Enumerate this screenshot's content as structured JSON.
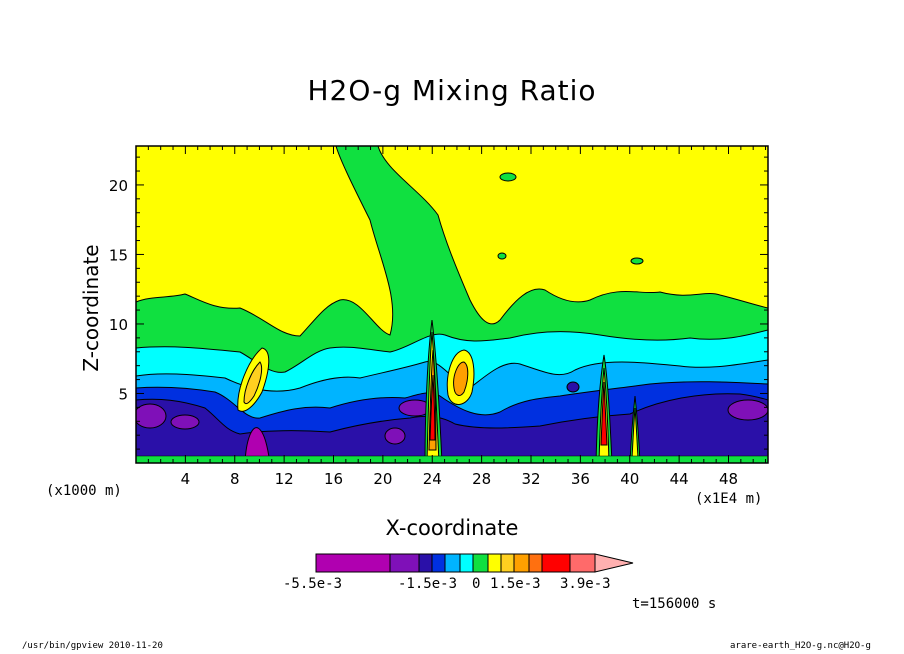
{
  "chart_data": {
    "type": "heatmap",
    "title": "H2O-g Mixing Ratio",
    "xlabel": "X-coordinate",
    "ylabel": "Z-coordinate",
    "x_unit_left": "(x1000 m)",
    "x_unit_right": "(x1E4 m)",
    "x_ticks": [
      "4",
      "8",
      "12",
      "16",
      "20",
      "24",
      "28",
      "32",
      "36",
      "40",
      "44",
      "48"
    ],
    "y_ticks": [
      "5",
      "10",
      "15",
      "20"
    ],
    "xlim": [
      0,
      51.2
    ],
    "ylim": [
      0,
      22.8
    ],
    "colorbar": {
      "labels": [
        "-5.5e-3",
        "-1.5e-3",
        "0",
        "1.5e-3",
        "3.9e-3"
      ],
      "colors": [
        "#b000b0",
        "#7f10b8",
        "#2a10a8",
        "#0030e0",
        "#00b4ff",
        "#00ffff",
        "#10e040",
        "#ffff00",
        "#ffd020",
        "#ffa000",
        "#ff7010",
        "#ff0000",
        "#ff6a6a",
        "#ffb0b0"
      ]
    },
    "time_label": "t=156000 s"
  },
  "footer": {
    "left": "/usr/bin/gpview  2010-11-20",
    "right": "arare-earth_H2O-g.nc@H2O-g"
  }
}
